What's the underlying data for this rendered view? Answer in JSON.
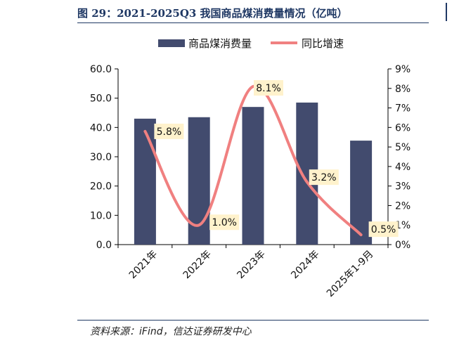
{
  "figure": {
    "title": "图 29：2021-2025Q3 我国商品煤消费量情况（亿吨）",
    "source": "资料来源：iFind，信达证券研发中心"
  },
  "chart_data": {
    "type": "bar",
    "categories": [
      "2021年",
      "2022年",
      "2023年",
      "2024年",
      "2025年1-9月"
    ],
    "series": [
      {
        "name": "商品煤消费量",
        "type": "bar",
        "axis": "left",
        "color": "#424b6e",
        "values": [
          43.0,
          43.5,
          47.0,
          48.5,
          35.5
        ]
      },
      {
        "name": "同比增速",
        "type": "line",
        "axis": "right",
        "color": "#f08080",
        "values": [
          5.8,
          1.0,
          8.1,
          3.2,
          0.5
        ],
        "labels": [
          "5.8%",
          "1.0%",
          "8.1%",
          "3.2%",
          "0.5%"
        ]
      }
    ],
    "y_left": {
      "min": 0,
      "max": 60,
      "ticks": [
        "0.0",
        "10.0",
        "20.0",
        "30.0",
        "40.0",
        "50.0",
        "60.0"
      ]
    },
    "y_right": {
      "min": 0,
      "max": 9,
      "ticks": [
        "0%",
        "1%",
        "2%",
        "3%",
        "4%",
        "5%",
        "6%",
        "7%",
        "8%",
        "9%"
      ]
    },
    "legend_position": "top",
    "grid": false
  }
}
